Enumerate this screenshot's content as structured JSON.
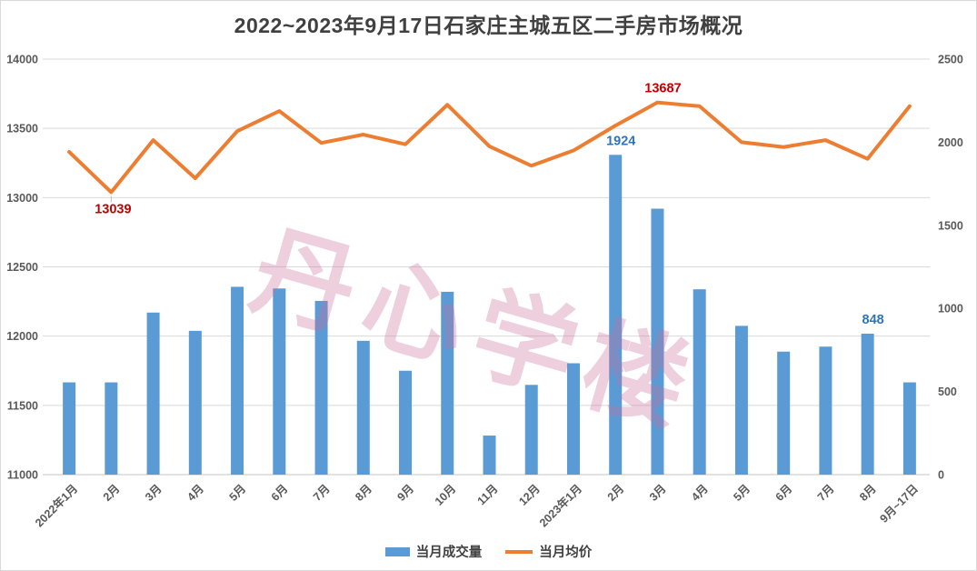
{
  "title": {
    "text": "2022~2023年9月17日石家庄主城五区二手房市场概况",
    "color": "#404040"
  },
  "watermark": {
    "text": "丹心学楼",
    "color": "rgba(199,110,152,0.33)"
  },
  "legend": {
    "items": [
      {
        "label": "当月成交量",
        "swatch": "bar",
        "color": "#5B9BD5"
      },
      {
        "label": "当月均价",
        "swatch": "line",
        "color": "#ED7D31"
      }
    ]
  },
  "chart_data": {
    "type": "combo-bar-line",
    "title": "2022~2023年9月17日石家庄主城五区二手房市场概况",
    "categories": [
      "2022年1月",
      "2月",
      "3月",
      "4月",
      "5月",
      "6月",
      "7月",
      "8月",
      "9月",
      "10月",
      "11月",
      "12月",
      "2023年1月",
      "2月",
      "3月",
      "4月",
      "5月",
      "6月",
      "7月",
      "8月",
      "9月~17日"
    ],
    "series": [
      {
        "name": "当月成交量",
        "type": "bar",
        "axis": "right",
        "color": "#5B9BD5",
        "values": [
          555,
          555,
          975,
          865,
          1130,
          1120,
          1045,
          805,
          625,
          1100,
          235,
          540,
          670,
          1924,
          1600,
          1115,
          895,
          740,
          770,
          848,
          555
        ]
      },
      {
        "name": "当月均价",
        "type": "line",
        "axis": "left",
        "color": "#ED7D31",
        "values": [
          13330,
          13039,
          13415,
          13140,
          13480,
          13625,
          13395,
          13455,
          13385,
          13670,
          13370,
          13230,
          13340,
          13520,
          13687,
          13660,
          13400,
          13365,
          13415,
          13280,
          13660
        ]
      }
    ],
    "left_axis": {
      "min": 11000,
      "max": 14000,
      "step": 500,
      "labels": [
        "11000",
        "11500",
        "12000",
        "12500",
        "13000",
        "13500",
        "14000"
      ]
    },
    "right_axis": {
      "min": 0,
      "max": 2500,
      "step": 500,
      "labels": [
        "0",
        "500",
        "1000",
        "1500",
        "2000",
        "2500"
      ]
    },
    "annotations": [
      {
        "text": "13039",
        "series_index": 1,
        "category_index": 1,
        "placement": "below",
        "color": "#C00000"
      },
      {
        "text": "13687",
        "series_index": 1,
        "category_index": 14,
        "placement": "above",
        "color": "#C00000"
      },
      {
        "text": "1924",
        "series_index": 0,
        "category_index": 13,
        "placement": "above",
        "color": "#2E75B6"
      },
      {
        "text": "848",
        "series_index": 0,
        "category_index": 19,
        "placement": "above",
        "color": "#2E75B6"
      }
    ],
    "grid": true,
    "legend_position": "bottom"
  },
  "styles": {
    "grid_color": "#d9d9d9",
    "axis_line_color": "#c6c6c6",
    "axis_text_color": "#595959",
    "annotation_leader_color": "#bfbfbf",
    "background": "#ffffff",
    "border_color": "#d9d9d9"
  }
}
